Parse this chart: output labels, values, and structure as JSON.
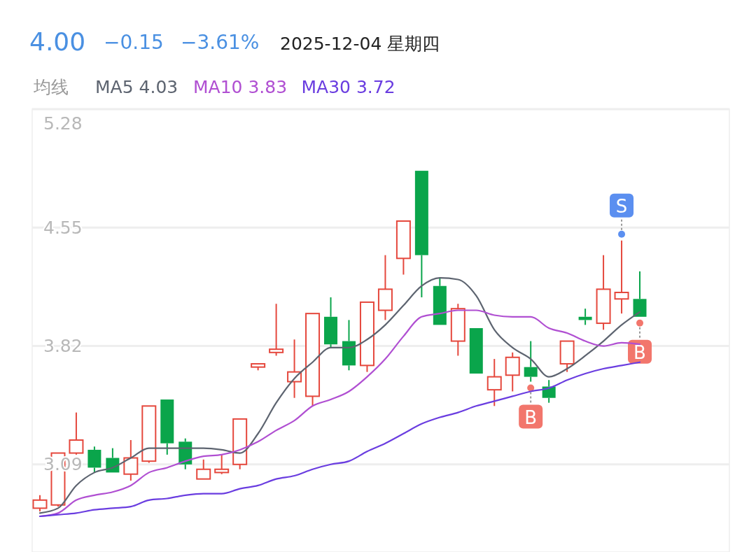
{
  "chart_data": {
    "type": "candlestick",
    "title": "2025-12-04 星期四",
    "legend_title": "均线",
    "legend": "top left",
    "grid": "y",
    "annotations": [
      "4.00",
      "−0.15",
      "−3.61%",
      {
        "text": "B",
        "y": 3.6
      },
      {
        "text": "S",
        "y": 4.47
      },
      {
        "text": "B",
        "y": 4.0
      }
    ],
    "categories": [
      null,
      null,
      null,
      null,
      null,
      null,
      null,
      null,
      null,
      null,
      null,
      null,
      null,
      null,
      null,
      null,
      null,
      null,
      null,
      null,
      null,
      null,
      null,
      null,
      null,
      null,
      null,
      null,
      null,
      null,
      null,
      null,
      null,
      null
    ],
    "ohlc": [
      [
        2.82,
        2.9,
        2.8,
        2.87
      ],
      [
        2.84,
        3.16,
        2.83,
        3.16
      ],
      [
        3.16,
        3.41,
        3.15,
        3.24
      ],
      [
        3.18,
        3.2,
        3.04,
        3.07
      ],
      [
        3.13,
        3.19,
        3.04,
        3.04
      ],
      [
        3.03,
        3.24,
        2.99,
        3.13
      ],
      [
        3.11,
        3.45,
        3.1,
        3.45
      ],
      [
        3.49,
        3.49,
        3.15,
        3.22
      ],
      [
        3.23,
        3.25,
        3.06,
        3.09
      ],
      [
        3.0,
        3.12,
        3.0,
        3.06
      ],
      [
        3.04,
        3.15,
        3.03,
        3.06
      ],
      [
        3.09,
        3.37,
        3.06,
        3.37
      ],
      [
        3.69,
        3.71,
        3.67,
        3.71
      ],
      [
        3.78,
        4.08,
        3.76,
        3.8
      ],
      [
        3.6,
        3.86,
        3.5,
        3.66
      ],
      [
        3.51,
        4.02,
        3.45,
        4.02
      ],
      [
        4.0,
        4.12,
        3.81,
        3.83
      ],
      [
        3.85,
        3.98,
        3.67,
        3.7
      ],
      [
        3.7,
        4.09,
        3.66,
        4.09
      ],
      [
        4.04,
        4.38,
        3.98,
        4.17
      ],
      [
        4.36,
        4.59,
        4.26,
        4.59
      ],
      [
        4.9,
        4.9,
        4.12,
        4.38
      ],
      [
        4.19,
        4.24,
        3.95,
        3.95
      ],
      [
        3.85,
        4.08,
        3.76,
        4.05
      ],
      [
        3.93,
        3.93,
        3.65,
        3.65
      ],
      [
        3.55,
        3.74,
        3.45,
        3.63
      ],
      [
        3.64,
        3.78,
        3.54,
        3.75
      ],
      [
        3.69,
        3.85,
        3.6,
        3.63
      ],
      [
        3.57,
        3.61,
        3.47,
        3.5
      ],
      [
        3.71,
        3.85,
        3.66,
        3.85
      ],
      [
        4.0,
        4.05,
        3.95,
        3.98
      ],
      [
        3.96,
        4.38,
        3.92,
        4.17
      ],
      [
        4.11,
        4.47,
        4.02,
        4.15
      ],
      [
        4.11,
        4.28,
        4.0,
        4.0
      ]
    ],
    "colors": [
      "#e5483d",
      "#e5483d",
      "#e5483d",
      "#0aa54b",
      "#0aa54b",
      "#e5483d",
      "#e5483d",
      "#0aa54b",
      "#0aa54b",
      "#e5483d",
      "#e5483d",
      "#e5483d",
      "#e5483d",
      "#e5483d",
      "#e5483d",
      "#e5483d",
      "#0aa54b",
      "#0aa54b",
      "#e5483d",
      "#e5483d",
      "#e5483d",
      "#0aa54b",
      "#0aa54b",
      "#e5483d",
      "#0aa54b",
      "#e5483d",
      "#e5483d",
      "#0aa54b",
      "#0aa54b",
      "#e5483d",
      "#0aa54b",
      "#e5483d",
      "#e5483d",
      "#0aa54b"
    ],
    "series": [
      {
        "type": "line",
        "name": "MA5 4.03",
        "color": "#5d6470",
        "values": [
          2.79,
          2.82,
          2.96,
          3.04,
          3.07,
          3.13,
          3.19,
          3.19,
          3.19,
          3.19,
          3.18,
          3.16,
          3.28,
          3.47,
          3.62,
          3.72,
          3.81,
          3.81,
          3.86,
          3.95,
          4.07,
          4.19,
          4.24,
          4.23,
          4.13,
          3.92,
          3.81,
          3.74,
          3.63,
          3.68,
          3.76,
          3.85,
          3.95,
          4.03
        ]
      },
      {
        "type": "line",
        "name": "MA10 3.83",
        "color": "#b04fd2",
        "values": [
          2.77,
          2.79,
          2.87,
          2.9,
          2.92,
          2.96,
          3.04,
          3.07,
          3.11,
          3.14,
          3.15,
          3.18,
          3.23,
          3.3,
          3.36,
          3.45,
          3.49,
          3.54,
          3.63,
          3.74,
          3.88,
          4.0,
          4.02,
          4.04,
          4.04,
          4.01,
          4.0,
          4.0,
          3.93,
          3.9,
          3.85,
          3.82,
          3.84,
          3.83
        ]
      },
      {
        "type": "line",
        "name": "MA30 3.72",
        "color": "#6a3de0",
        "values": [
          2.77,
          2.78,
          2.79,
          2.81,
          2.82,
          2.83,
          2.87,
          2.88,
          2.9,
          2.91,
          2.91,
          2.94,
          2.96,
          3.0,
          3.02,
          3.06,
          3.09,
          3.11,
          3.17,
          3.22,
          3.28,
          3.34,
          3.38,
          3.41,
          3.45,
          3.48,
          3.51,
          3.54,
          3.56,
          3.61,
          3.65,
          3.68,
          3.7,
          3.72
        ]
      }
    ],
    "ylim": [
      2.55,
      5.28
    ],
    "yticks": [
      5.28,
      4.55,
      3.82,
      3.09
    ]
  }
}
